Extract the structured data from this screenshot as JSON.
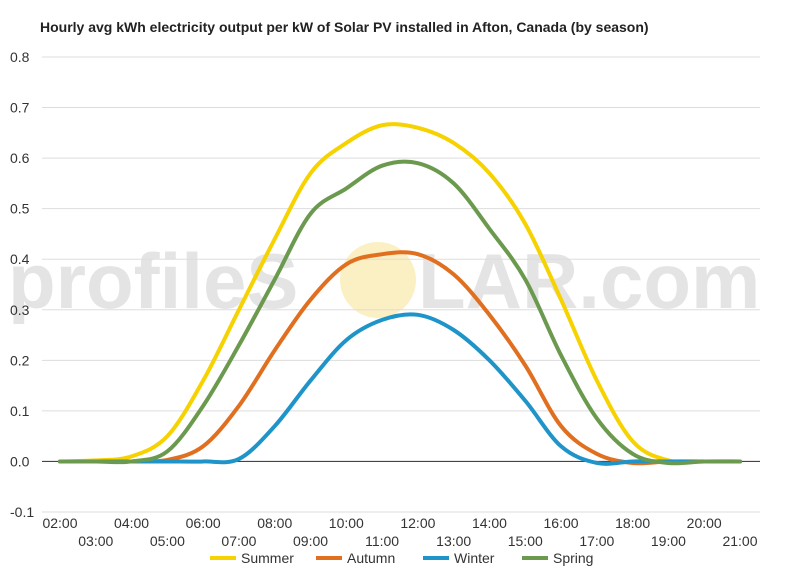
{
  "chart_data": {
    "type": "line",
    "title": "Hourly avg kWh electricity output per kW of Solar PV installed in Afton, Canada (by season)",
    "xlabel": "",
    "ylabel": "",
    "ylim": [
      -0.1,
      0.8
    ],
    "yticks": [
      "-0.1",
      "0.0",
      "0.1",
      "0.2",
      "0.3",
      "0.4",
      "0.5",
      "0.6",
      "0.7",
      "0.8"
    ],
    "x": [
      "02:00",
      "03:00",
      "04:00",
      "05:00",
      "06:00",
      "07:00",
      "08:00",
      "09:00",
      "10:00",
      "11:00",
      "12:00",
      "13:00",
      "14:00",
      "15:00",
      "16:00",
      "17:00",
      "18:00",
      "19:00",
      "20:00",
      "21:00"
    ],
    "grid": true,
    "legend": "bottom",
    "series": [
      {
        "name": "Summer",
        "color": "#f5d200",
        "values": [
          0.0,
          0.002,
          0.01,
          0.05,
          0.16,
          0.3,
          0.44,
          0.57,
          0.63,
          0.665,
          0.66,
          0.63,
          0.57,
          0.47,
          0.32,
          0.16,
          0.04,
          0.002,
          0.0,
          0.0
        ]
      },
      {
        "name": "Autumn",
        "color": "#e07020",
        "values": [
          0.0,
          0.0,
          0.0,
          0.003,
          0.03,
          0.11,
          0.22,
          0.32,
          0.39,
          0.41,
          0.41,
          0.37,
          0.29,
          0.19,
          0.07,
          0.015,
          -0.003,
          0.0,
          0.0,
          0.0
        ]
      },
      {
        "name": "Winter",
        "color": "#1f94c8",
        "values": [
          0.0,
          0.0,
          0.0,
          0.0,
          0.0,
          0.005,
          0.07,
          0.16,
          0.24,
          0.28,
          0.29,
          0.26,
          0.2,
          0.12,
          0.03,
          -0.003,
          0.0,
          0.0,
          0.0,
          0.0
        ]
      },
      {
        "name": "Spring",
        "color": "#6b9a4f",
        "values": [
          0.0,
          0.0,
          0.0,
          0.02,
          0.11,
          0.23,
          0.36,
          0.49,
          0.54,
          0.585,
          0.59,
          0.55,
          0.46,
          0.36,
          0.21,
          0.085,
          0.015,
          -0.003,
          0.0,
          0.0
        ]
      }
    ]
  },
  "watermark": {
    "text_before": "profileS",
    "text_after": "LAR.com"
  }
}
